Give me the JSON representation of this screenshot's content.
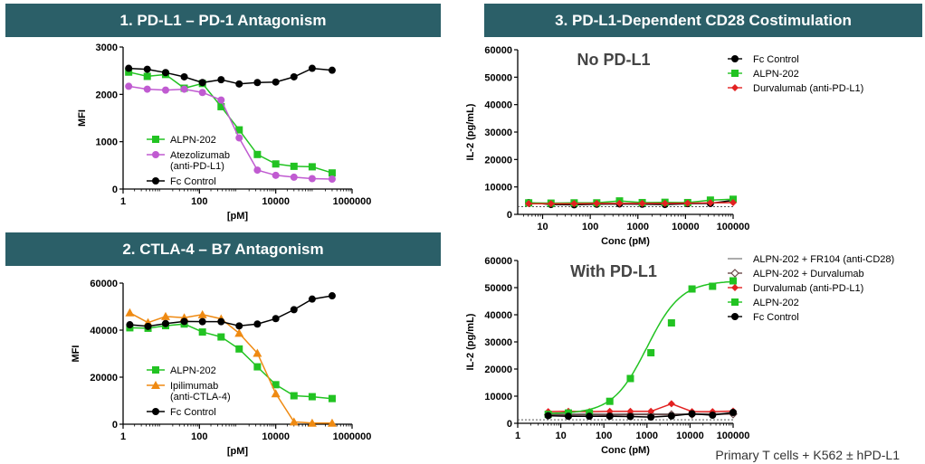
{
  "banners": {
    "b1": "1. PD-L1 – PD-1 Antagonism",
    "b2": "2. CTLA-4 – B7 Antagonism",
    "b3": "3. PD-L1-Dependent CD28 Costimulation"
  },
  "footnote": "Primary T cells + K562 ± hPD-L1",
  "colors": {
    "banner": "#2b5f68",
    "green": "#22c322",
    "purple": "#c05bd1",
    "black": "#000000",
    "orange": "#ef8a12",
    "red": "#e32121",
    "gray": "#888888",
    "brown": "#6b4a4a"
  },
  "chart_data": [
    {
      "id": "c1",
      "type": "line",
      "xscale": "log",
      "xlabel": "[pM]",
      "ylabel": "MFI",
      "xlim": [
        1,
        1000000
      ],
      "ylim": [
        0,
        3000
      ],
      "xticks": [
        1,
        100,
        10000,
        1000000
      ],
      "xtick_labels": [
        "1",
        "100",
        "10000",
        "1000000"
      ],
      "yticks": [
        0,
        1000,
        2000,
        3000
      ],
      "ytick_labels": [
        "0",
        "1000",
        "2000",
        "3000"
      ],
      "legend_pos": "bottom-left",
      "series": [
        {
          "name": "ALPN-202",
          "color": "#22c322",
          "marker": "square",
          "x": [
            1.4,
            4.3,
            13,
            40,
            120,
            370,
            1100,
            3300,
            10000,
            30000,
            90000,
            300000
          ],
          "y": [
            2470,
            2380,
            2420,
            2130,
            2230,
            1740,
            1250,
            730,
            530,
            480,
            470,
            340
          ]
        },
        {
          "name": "Atezolizumab (anti-PD-L1)",
          "color": "#c05bd1",
          "marker": "circle",
          "x": [
            1.4,
            4.3,
            13,
            40,
            120,
            370,
            1100,
            3300,
            10000,
            30000,
            90000,
            300000
          ],
          "y": [
            2170,
            2110,
            2090,
            2110,
            2040,
            1880,
            1080,
            400,
            290,
            250,
            220,
            210
          ]
        },
        {
          "name": "Fc Control",
          "color": "#000000",
          "marker": "circle",
          "x": [
            1.4,
            4.3,
            13,
            40,
            120,
            370,
            1100,
            3300,
            10000,
            30000,
            90000,
            300000
          ],
          "y": [
            2550,
            2530,
            2460,
            2370,
            2250,
            2310,
            2220,
            2250,
            2260,
            2370,
            2550,
            2510
          ]
        }
      ]
    },
    {
      "id": "c2",
      "type": "line",
      "xscale": "log",
      "xlabel": "[pM]",
      "ylabel": "MFI",
      "xlim": [
        1,
        1000000
      ],
      "ylim": [
        0,
        60000
      ],
      "xticks": [
        1,
        100,
        10000,
        1000000
      ],
      "xtick_labels": [
        "1",
        "100",
        "10000",
        "1000000"
      ],
      "yticks": [
        0,
        20000,
        40000,
        60000
      ],
      "ytick_labels": [
        "0",
        "20000",
        "40000",
        "60000"
      ],
      "legend_pos": "bottom-left",
      "series": [
        {
          "name": "ALPN-202",
          "color": "#22c322",
          "marker": "square",
          "x": [
            1.5,
            4.5,
            13,
            40,
            120,
            370,
            1100,
            3300,
            10000,
            30000,
            90000,
            300000
          ],
          "y": [
            41000,
            40800,
            41900,
            42600,
            39200,
            37100,
            32000,
            24400,
            16800,
            12100,
            11700,
            10900
          ]
        },
        {
          "name": "Ipilimumab (anti-CTLA-4)",
          "color": "#ef8a12",
          "marker": "triangle",
          "x": [
            1.5,
            4.5,
            13,
            40,
            120,
            370,
            1100,
            3300,
            10000,
            30000,
            90000,
            300000
          ],
          "y": [
            47400,
            43200,
            45800,
            45300,
            46600,
            44800,
            38700,
            30200,
            13000,
            1000,
            500,
            500
          ]
        },
        {
          "name": "Fc Control",
          "color": "#000000",
          "marker": "circle",
          "x": [
            1.5,
            4.5,
            13,
            40,
            120,
            370,
            1100,
            3300,
            10000,
            30000,
            90000,
            300000
          ],
          "y": [
            42300,
            41600,
            42800,
            43700,
            43600,
            43600,
            41800,
            42600,
            44900,
            48700,
            53200,
            54600
          ]
        }
      ]
    },
    {
      "id": "c3",
      "type": "line",
      "xscale": "log",
      "title": "No PD-L1",
      "xlabel": "Conc (pM)",
      "ylabel": "IL-2 (pg/mL)",
      "xlim": [
        3,
        100000
      ],
      "ylim": [
        0,
        60000
      ],
      "xticks": [
        10,
        100,
        1000,
        10000,
        100000
      ],
      "xtick_labels": [
        "10",
        "100",
        "1000",
        "10000",
        "100000"
      ],
      "yticks": [
        0,
        10000,
        20000,
        30000,
        40000,
        50000,
        60000
      ],
      "ytick_labels": [
        "0",
        "10000",
        "20000",
        "30000",
        "40000",
        "50000",
        "60000"
      ],
      "baseline": 2800,
      "legend_pos": "top-left",
      "series": [
        {
          "name": "Fc Control",
          "color": "#000000",
          "marker": "circle",
          "x": [
            5.1,
            15,
            46,
            137,
            412,
            1235,
            3704,
            11111,
            33333,
            100000
          ],
          "y": [
            4300,
            3600,
            3500,
            3700,
            3800,
            3700,
            3600,
            3900,
            4000,
            5100
          ]
        },
        {
          "name": "ALPN-202",
          "color": "#22c322",
          "marker": "square",
          "x": [
            5.1,
            15,
            46,
            137,
            412,
            1235,
            3704,
            11111,
            33333,
            100000
          ],
          "y": [
            4200,
            4100,
            4200,
            4200,
            4900,
            4300,
            4400,
            4300,
            5200,
            5500
          ]
        },
        {
          "name": "Durvalumab (anti-PD-L1)",
          "color": "#e32121",
          "marker": "diamond",
          "x": [
            5.1,
            15,
            46,
            137,
            412,
            1235,
            3704,
            11111,
            33333,
            100000
          ],
          "y": [
            3900,
            3900,
            3900,
            4000,
            4000,
            4000,
            4000,
            4100,
            4200,
            4300
          ]
        }
      ]
    },
    {
      "id": "c4",
      "type": "line",
      "xscale": "log",
      "title": "With PD-L1",
      "xlabel": "Conc (pM)",
      "ylabel": "IL-2 (pg/mL)",
      "xlim": [
        1,
        100000
      ],
      "ylim": [
        0,
        60000
      ],
      "xticks": [
        1,
        10,
        100,
        1000,
        10000,
        100000
      ],
      "xtick_labels": [
        "1",
        "10",
        "100",
        "1000",
        "10000",
        "100000"
      ],
      "yticks": [
        0,
        10000,
        20000,
        30000,
        40000,
        50000,
        60000
      ],
      "ytick_labels": [
        "0",
        "10000",
        "20000",
        "30000",
        "40000",
        "50000",
        "60000"
      ],
      "baseline": 1300,
      "legend_pos": "top-right",
      "series": [
        {
          "name": "ALPN-202 + FR104 (anti-CD28)",
          "color": "#888888",
          "marker": "line",
          "x": [
            5.1,
            15,
            46,
            137,
            412,
            1235,
            3704,
            11111,
            33333,
            100000
          ],
          "y": [
            3500,
            3500,
            3500,
            3500,
            3500,
            3500,
            3500,
            3500,
            3600,
            3600
          ]
        },
        {
          "name": "ALPN-202 + Durvalumab",
          "color": "#6b4a4a",
          "marker": "diamond-open",
          "x": [
            5.1,
            15,
            46,
            137,
            412,
            1235,
            3704,
            11111,
            33333,
            100000
          ],
          "y": [
            3200,
            3100,
            3200,
            3100,
            3200,
            3200,
            3200,
            3300,
            3300,
            3400
          ]
        },
        {
          "name": "Durvalumab (anti-PD-L1)",
          "color": "#e32121",
          "marker": "diamond",
          "x": [
            5.1,
            15,
            46,
            137,
            412,
            1235,
            3704,
            11111,
            33333,
            100000
          ],
          "y": [
            4300,
            4400,
            4300,
            4400,
            4400,
            4400,
            7200,
            4300,
            4300,
            4500
          ]
        },
        {
          "name": "ALPN-202",
          "color": "#22c322",
          "marker": "square",
          "fit": "sigmoid",
          "x": [
            5.1,
            15,
            46,
            137,
            412,
            1235,
            3704,
            11111,
            33333,
            100000
          ],
          "y": [
            3300,
            3800,
            3700,
            8100,
            16500,
            26000,
            37000,
            49500,
            50500,
            52500
          ]
        },
        {
          "name": "Fc Control",
          "color": "#000000",
          "marker": "circle",
          "x": [
            5.1,
            15,
            46,
            137,
            412,
            1235,
            3704,
            11111,
            33333,
            100000
          ],
          "y": [
            2800,
            2600,
            2600,
            2600,
            2500,
            2300,
            2700,
            3500,
            3000,
            4000
          ]
        }
      ]
    }
  ]
}
